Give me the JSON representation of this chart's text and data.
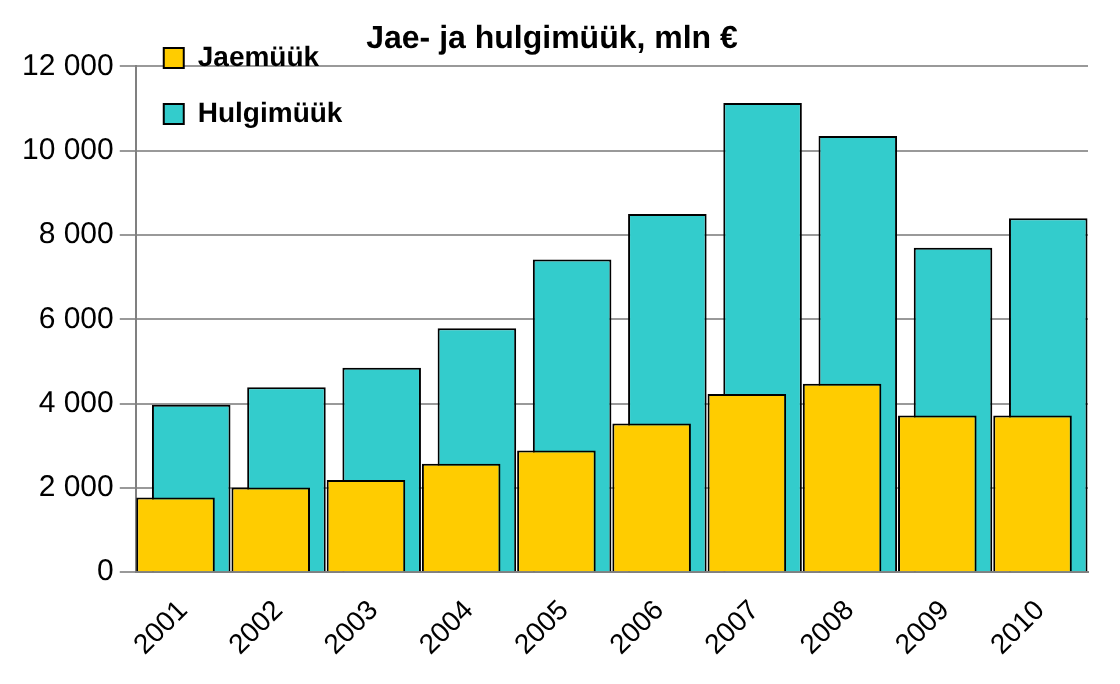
{
  "chart_data": {
    "type": "bar",
    "title": "Jae- ja hulgimüük, mln €",
    "categories": [
      "2001",
      "2002",
      "2003",
      "2004",
      "2005",
      "2006",
      "2007",
      "2008",
      "2009",
      "2010"
    ],
    "series": [
      {
        "name": "Hulgimüük",
        "color": "#33cccc",
        "values": [
          3970,
          4390,
          4850,
          5790,
          7420,
          8500,
          11130,
          10350,
          7700,
          8400
        ]
      },
      {
        "name": "Jaemüük",
        "color": "#ffcc00",
        "values": [
          1770,
          2010,
          2190,
          2570,
          2890,
          3530,
          4230,
          4470,
          3720,
          3720
        ]
      }
    ],
    "ylim": [
      0,
      12000
    ],
    "yticks": [
      {
        "value": 0,
        "label": "0"
      },
      {
        "value": 2000,
        "label": "2 000"
      },
      {
        "value": 4000,
        "label": "4 000"
      },
      {
        "value": 6000,
        "label": "6 000"
      },
      {
        "value": 8000,
        "label": "8 000"
      },
      {
        "value": 10000,
        "label": "10 000"
      },
      {
        "value": 12000,
        "label": "12 000"
      }
    ],
    "grid": "y",
    "legend": "top left"
  }
}
